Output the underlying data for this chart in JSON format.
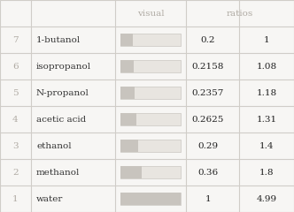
{
  "rows": [
    {
      "num": "7",
      "name": "1-butanol",
      "value": "0.2",
      "ratio": "1",
      "fill": 0.2
    },
    {
      "num": "6",
      "name": "isopropanol",
      "value": "0.2158",
      "ratio": "1.08",
      "fill": 0.2158
    },
    {
      "num": "5",
      "name": "N-propanol",
      "value": "0.2357",
      "ratio": "1.18",
      "fill": 0.2357
    },
    {
      "num": "4",
      "name": "acetic acid",
      "value": "0.2625",
      "ratio": "1.31",
      "fill": 0.2625
    },
    {
      "num": "3",
      "name": "ethanol",
      "value": "0.29",
      "ratio": "1.4",
      "fill": 0.29
    },
    {
      "num": "2",
      "name": "methanol",
      "value": "0.36",
      "ratio": "1.8",
      "fill": 0.36
    },
    {
      "num": "1",
      "name": "water",
      "value": "1",
      "ratio": "4.99",
      "fill": 1.0
    }
  ],
  "col_headers": [
    "visual",
    "ratios"
  ],
  "bg_color": "#f7f6f4",
  "line_color": "#d0cdc8",
  "num_color": "#b0aba4",
  "name_color": "#333333",
  "value_color": "#222222",
  "bar_fill_color": "#c8c4be",
  "bar_full_color": "#e8e5e0",
  "header_text_color": "#b0aba4",
  "figsize": [
    3.32,
    2.4
  ],
  "dpi": 100
}
